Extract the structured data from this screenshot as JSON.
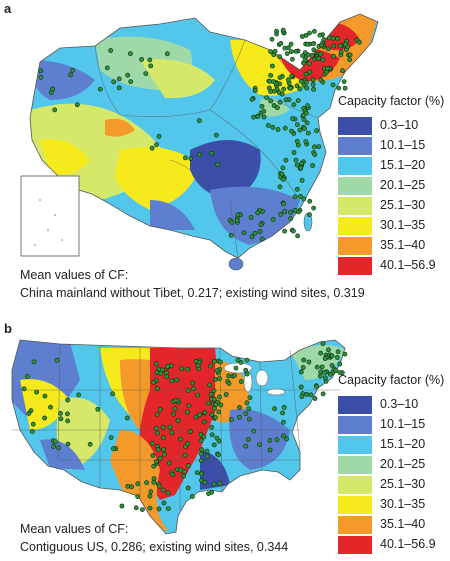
{
  "panels": [
    {
      "label": "a",
      "legend_title": "Capacity factor (%)",
      "caption_line1": "Mean values of CF:",
      "caption_line2": "China mainland without Tibet, 0.217; existing wind sites, 0.319"
    },
    {
      "label": "b",
      "legend_title": "Capacity factor (%)",
      "caption_line1": "Mean values of CF:",
      "caption_line2": "Contiguous US, 0.286; existing wind sites, 0.344"
    }
  ],
  "legend_bins": [
    {
      "label": "0.3–10",
      "color": "#3b4fa8"
    },
    {
      "label": "10.1–15",
      "color": "#5e7fd0"
    },
    {
      "label": "15.1–20",
      "color": "#53c6ec"
    },
    {
      "label": "20.1–25",
      "color": "#9fd9a8"
    },
    {
      "label": "25.1–30",
      "color": "#d6e86a"
    },
    {
      "label": "30.1–35",
      "color": "#f7ea1c"
    },
    {
      "label": "35.1–40",
      "color": "#f39a2a"
    },
    {
      "label": "40.1–56.9",
      "color": "#e3262a"
    }
  ],
  "colors": {
    "site_marker": "#2f8f3a",
    "site_outline": "#0b2a10",
    "boundary": "#555555"
  }
}
